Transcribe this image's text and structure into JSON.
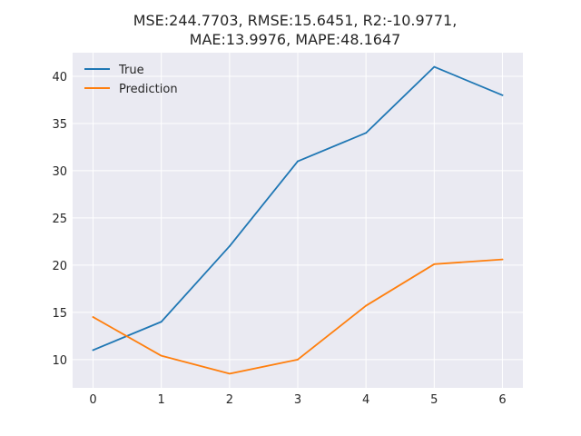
{
  "chart_data": {
    "type": "line",
    "title_lines": [
      "MSE:244.7703, RMSE:15.6451, R2:-10.9771,",
      "MAE:13.9976, MAPE:48.1647"
    ],
    "x": [
      0,
      1,
      2,
      3,
      4,
      5,
      6
    ],
    "xticks": [
      "0",
      "1",
      "2",
      "3",
      "4",
      "5",
      "6"
    ],
    "yticks": [
      "10",
      "15",
      "20",
      "25",
      "30",
      "35",
      "40"
    ],
    "xlim": [
      -0.3,
      6.3
    ],
    "ylim": [
      7,
      42.5
    ],
    "grid": true,
    "legend_placement": "top-left",
    "background": "#EAEAF2",
    "series": [
      {
        "name": "True",
        "color": "#1F77B4",
        "values": [
          11,
          14,
          22,
          31,
          34,
          41,
          38
        ]
      },
      {
        "name": "Prediction",
        "color": "#FF7F0E",
        "values": [
          14.5,
          10.4,
          8.5,
          10.0,
          15.7,
          20.1,
          20.6
        ]
      }
    ]
  }
}
